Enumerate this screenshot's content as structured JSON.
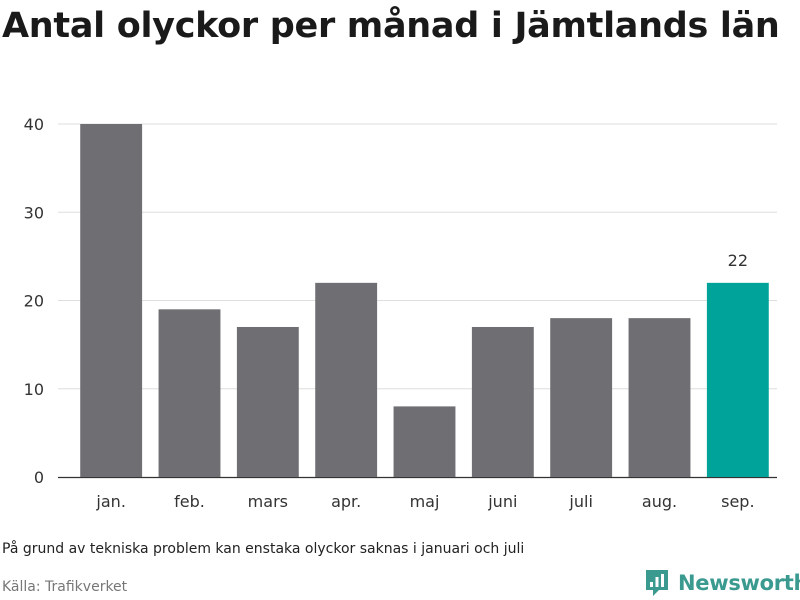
{
  "chart_data": {
    "type": "bar",
    "title": "Antal olyckor per månad i Jämtlands län",
    "categories": [
      "jan.",
      "feb.",
      "mars",
      "apr.",
      "maj",
      "juni",
      "juli",
      "aug.",
      "sep."
    ],
    "values": [
      40,
      19,
      17,
      22,
      8,
      17,
      18,
      18,
      22
    ],
    "yticks": [
      0,
      10,
      20,
      30,
      40
    ],
    "ylim": [
      0,
      40
    ],
    "grid": true,
    "highlight_index": 8,
    "highlight_label": "22",
    "colors": {
      "bar": "#6f6e73",
      "highlight": "#00a39a",
      "axis": "#333333"
    }
  },
  "note": "På grund av tekniska problem kan enstaka olyckor saknas i januari och juli",
  "source": "Källa: Trafikverket",
  "brand": {
    "name": "Newsworthy",
    "icon": "bar-chart-logo-icon",
    "color": "#3a9a8f"
  }
}
